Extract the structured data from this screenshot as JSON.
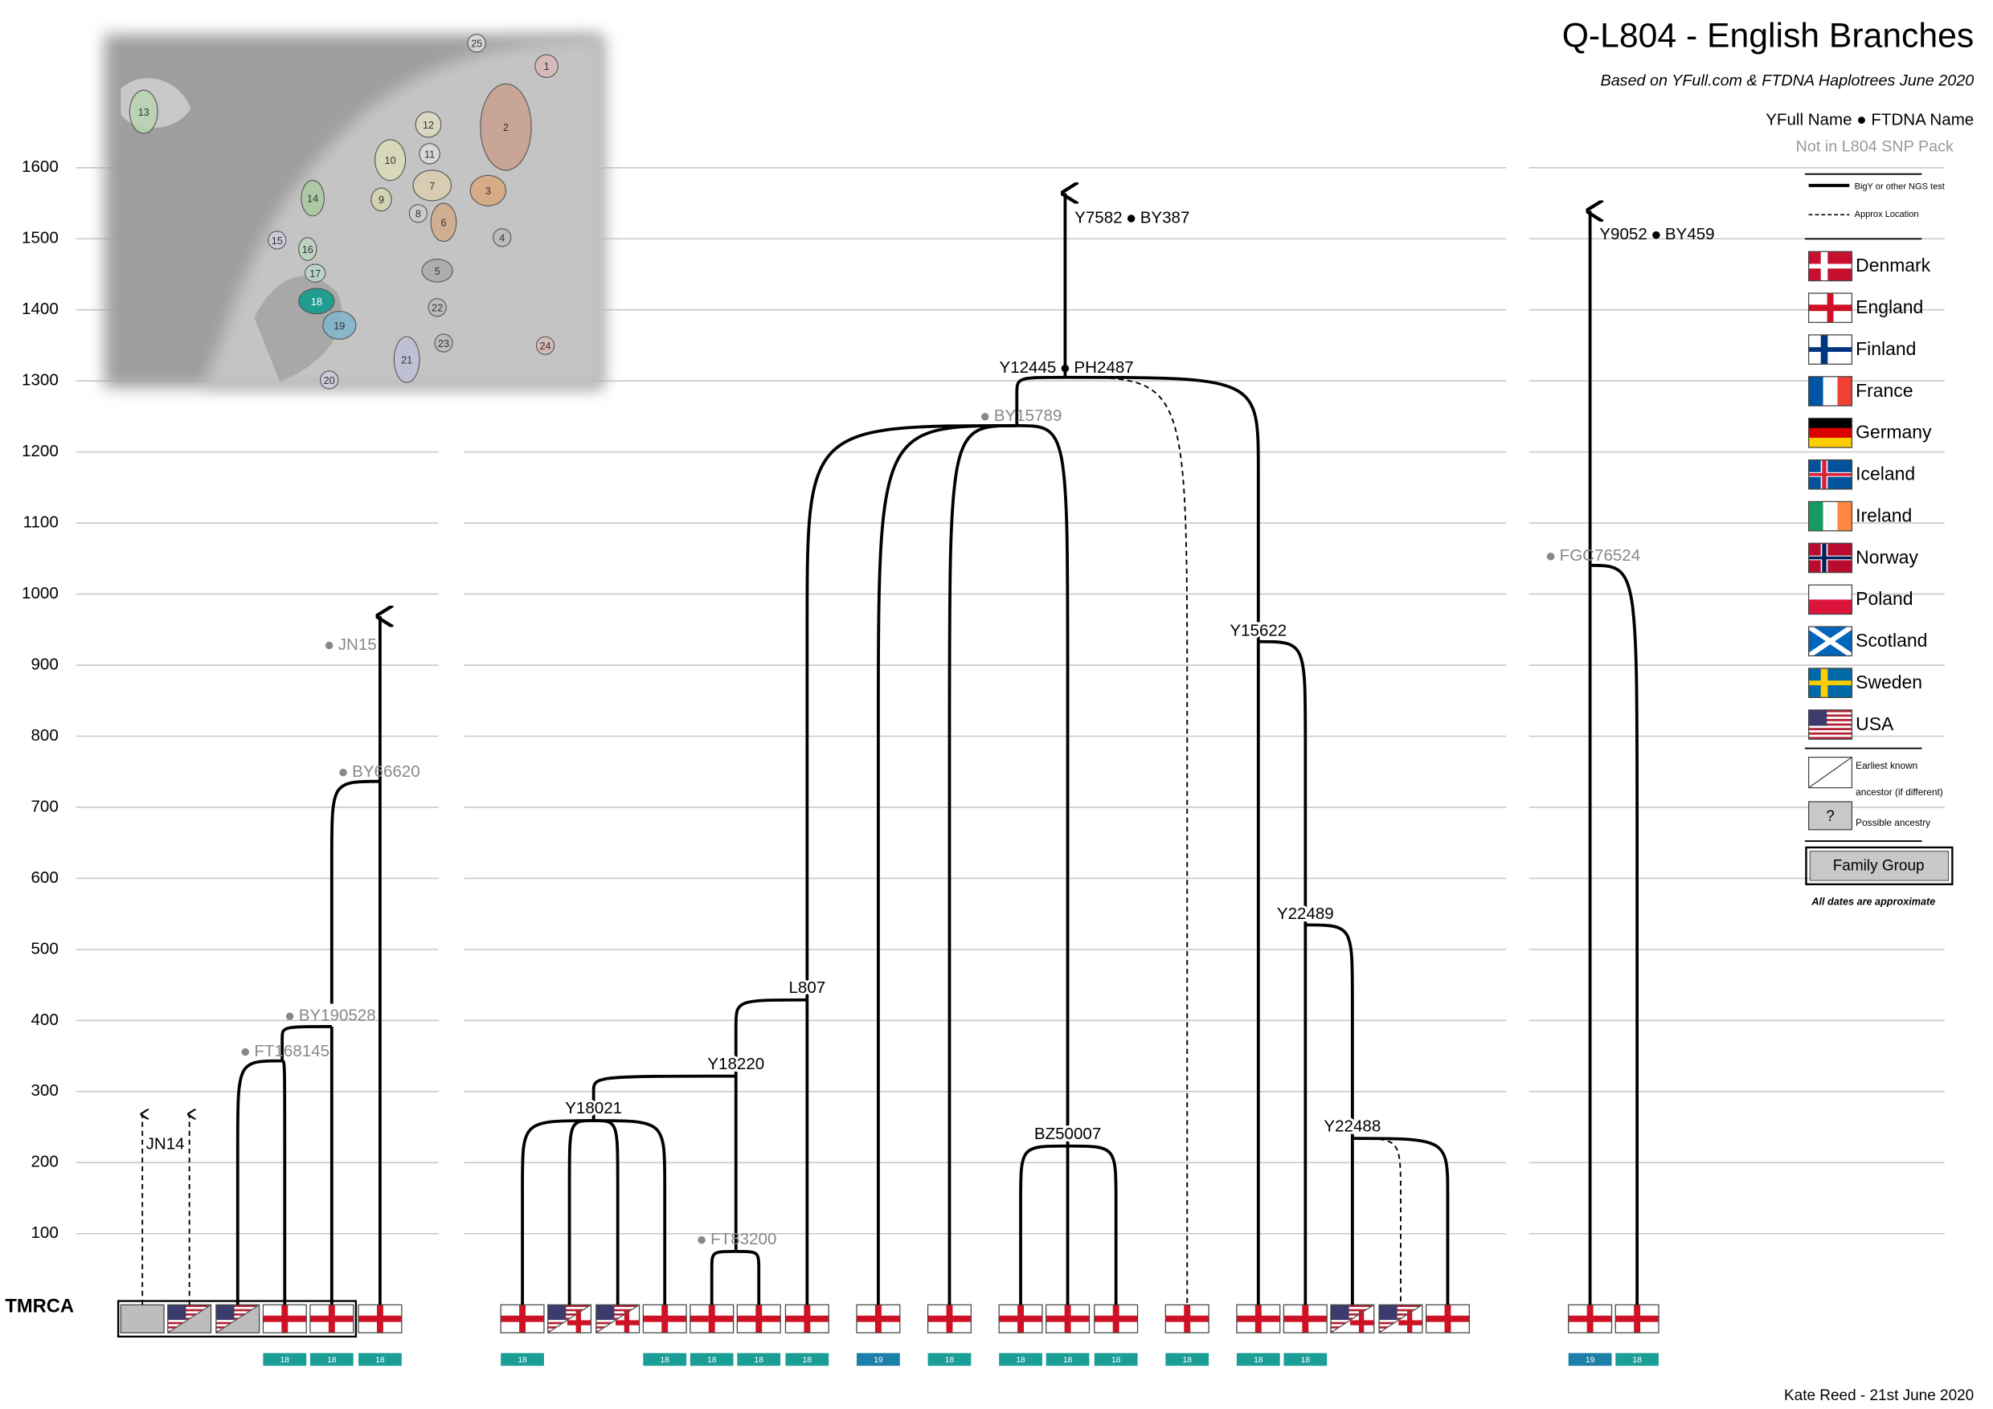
{
  "title": "Q-L804 - English Branches",
  "subtitle": "Based on YFull.com & FTDNA Haplotrees June 2020",
  "key": {
    "yfull": "YFull Name",
    "ftdna": "FTDNA Name",
    "not_in_pack": "Not in L804 SNP Pack",
    "ngs": "BigY or other NGS test",
    "approx": "Approx Location",
    "countries": [
      "Denmark",
      "England",
      "Finland",
      "France",
      "Germany",
      "Iceland",
      "Ireland",
      "Norway",
      "Poland",
      "Scotland",
      "Sweden",
      "USA"
    ],
    "earliest": [
      "Earliest known",
      "ancestor (if different)"
    ],
    "possible_mark": "?",
    "possible": "Possible ancestry",
    "family": "Family Group",
    "note": "All dates are approximate"
  },
  "axis": {
    "ticks": [
      100,
      200,
      300,
      400,
      500,
      600,
      700,
      800,
      900,
      1000,
      1100,
      1200,
      1300,
      1400,
      1500,
      1600
    ],
    "tmrca": "TMRCA"
  },
  "nodes": [
    {
      "label": "JN14"
    },
    {
      "label": "JN15"
    },
    {
      "label": "BY66620"
    },
    {
      "label": "BY190528"
    },
    {
      "label": "FT168145"
    },
    {
      "label": "Y18021"
    },
    {
      "label": "Y18220"
    },
    {
      "label": "L807"
    },
    {
      "label": "FT83200"
    },
    {
      "label": "BY15789"
    },
    {
      "label": "Y12445",
      "alt": "PH2487"
    },
    {
      "label": "Y7582",
      "alt": "BY387"
    },
    {
      "label": "BZ50007"
    },
    {
      "label": "Y15622"
    },
    {
      "label": "Y22489"
    },
    {
      "label": "Y22488"
    },
    {
      "label": "FGC76524"
    },
    {
      "label": "Y9052",
      "alt": "BY459"
    }
  ],
  "regions": [
    "18",
    "18",
    "18",
    "18",
    "18",
    "18",
    "18",
    "18",
    "19",
    "18",
    "18",
    "18",
    "18",
    "18",
    "18",
    "18",
    "19",
    "18"
  ],
  "map": {
    "labels": [
      "1",
      "2",
      "3",
      "4",
      "5",
      "6",
      "7",
      "8",
      "9",
      "10",
      "11",
      "12",
      "13",
      "14",
      "15",
      "16",
      "17",
      "18",
      "19",
      "20",
      "21",
      "22",
      "23",
      "24",
      "25"
    ]
  },
  "footer": "Kate Reed - 21st June 2020"
}
